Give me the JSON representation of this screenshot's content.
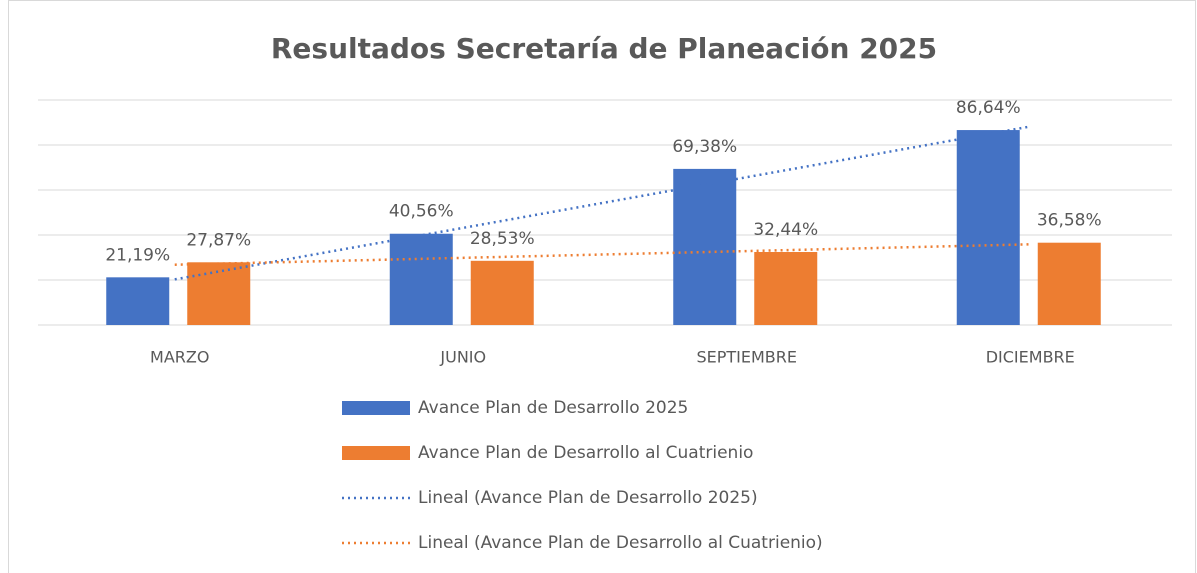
{
  "chart_data": {
    "type": "bar",
    "title": "Resultados Secretaría de Planeación 2025",
    "categories": [
      "MARZO",
      "JUNIO",
      "SEPTIEMBRE",
      "DICIEMBRE"
    ],
    "series": [
      {
        "name": "Avance Plan de Desarrollo  2025",
        "color": "#4472c4",
        "values": [
          21.19,
          40.56,
          69.38,
          86.64
        ],
        "value_labels": [
          "21,19%",
          "40,56%",
          "69,38%",
          "86,64%"
        ],
        "trendline": "Lineal (Avance Plan de Desarrollo  2025)"
      },
      {
        "name": "Avance Plan de Desarrollo al Cuatrienio",
        "color": "#ed7d31",
        "values": [
          27.87,
          28.53,
          32.44,
          36.58
        ],
        "value_labels": [
          "27,87%",
          "28,53%",
          "32,44%",
          "36,58%"
        ],
        "trendline": "Lineal (Avance Plan de Desarrollo al Cuatrienio)"
      }
    ],
    "ylim": [
      0,
      100
    ],
    "yticks": [
      0,
      20,
      40,
      60,
      80,
      100
    ],
    "grid": true
  }
}
